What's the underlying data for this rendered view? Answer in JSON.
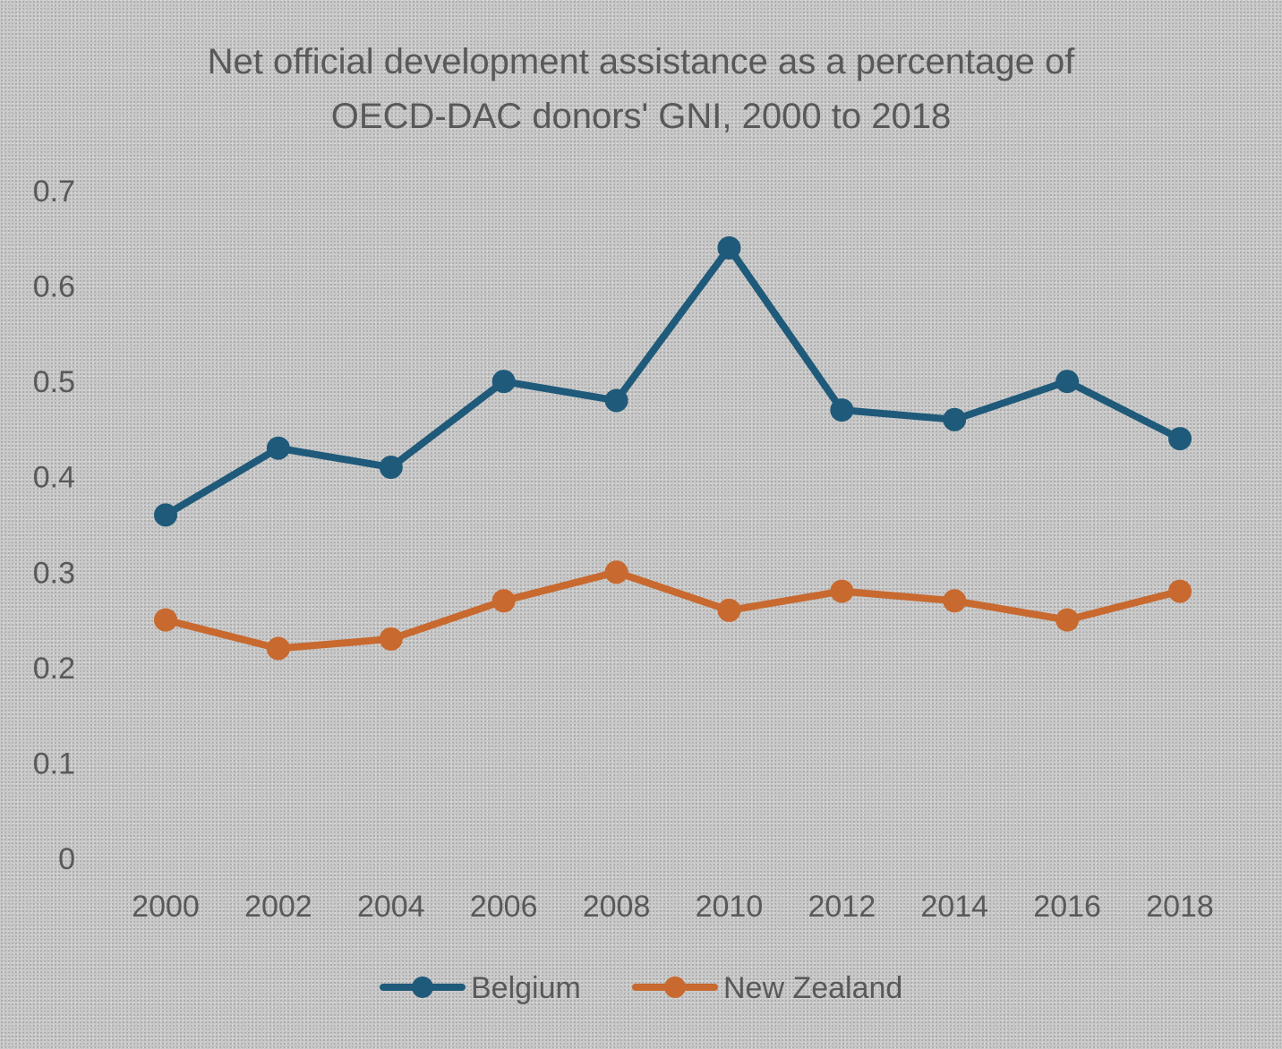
{
  "chart_data": {
    "type": "line",
    "title_lines": [
      "Net official development assistance as a percentage of",
      "OECD-DAC donors' GNI, 2000 to 2018"
    ],
    "xlabel": "",
    "ylabel": "",
    "x": [
      2000,
      2002,
      2004,
      2006,
      2008,
      2010,
      2012,
      2014,
      2016,
      2018
    ],
    "x_tick_labels": [
      "2000",
      "2002",
      "2004",
      "2006",
      "2008",
      "2010",
      "2012",
      "2014",
      "2016",
      "2018"
    ],
    "y_tick_labels": [
      "0",
      "0.1",
      "0.2",
      "0.3",
      "0.4",
      "0.5",
      "0.6",
      "0.7"
    ],
    "ylim": [
      0,
      0.7
    ],
    "grid": false,
    "legend_position": "bottom",
    "series": [
      {
        "name": "Belgium",
        "color": "#1f5a7a",
        "values": [
          0.36,
          0.43,
          0.41,
          0.5,
          0.48,
          0.64,
          0.47,
          0.46,
          0.5,
          0.44
        ]
      },
      {
        "name": "New Zealand",
        "color": "#c8692f",
        "values": [
          0.25,
          0.22,
          0.23,
          0.27,
          0.3,
          0.26,
          0.28,
          0.27,
          0.25,
          0.28
        ]
      }
    ]
  }
}
